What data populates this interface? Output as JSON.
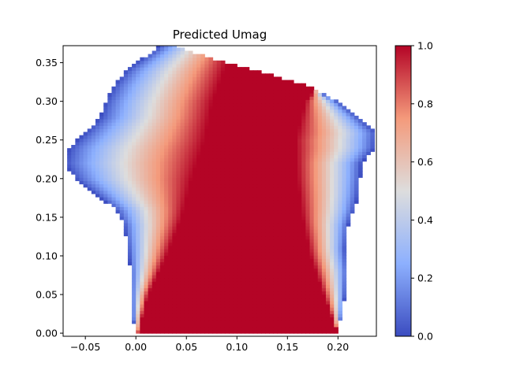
{
  "chart_data": {
    "type": "heatmap",
    "title": "Predicted Umag",
    "xlabel": "",
    "ylabel": "",
    "xlim": [
      -0.072,
      0.238
    ],
    "ylim": [
      -0.004,
      0.372
    ],
    "x_ticks": [
      -0.05,
      0.0,
      0.05,
      0.1,
      0.15,
      0.2
    ],
    "x_tick_labels": [
      "−0.05",
      "0.00",
      "0.05",
      "0.10",
      "0.15",
      "0.20"
    ],
    "y_ticks": [
      0.0,
      0.05,
      0.1,
      0.15,
      0.2,
      0.25,
      0.3,
      0.35
    ],
    "y_tick_labels": [
      "0.00",
      "0.05",
      "0.10",
      "0.15",
      "0.20",
      "0.25",
      "0.30",
      "0.35"
    ],
    "grid": false,
    "colormap": "coolwarm",
    "colormap_stops": [
      "#3b4cc0",
      "#8db0fe",
      "#dddddd",
      "#f49a7b",
      "#b40426"
    ],
    "colorbar": {
      "range": [
        0.0,
        1.0
      ],
      "ticks": [
        0.0,
        0.2,
        0.4,
        0.6,
        0.8,
        1.0
      ],
      "tick_labels": [
        "0.0",
        "0.2",
        "0.4",
        "0.6",
        "0.8",
        "1.0"
      ]
    },
    "domain_boundary": {
      "y": [
        0.0,
        0.02,
        0.05,
        0.08,
        0.11,
        0.14,
        0.16,
        0.18,
        0.2,
        0.22,
        0.24,
        0.26,
        0.28,
        0.3,
        0.32,
        0.34,
        0.35,
        0.37
      ],
      "left_x": [
        0.0,
        -0.003,
        -0.004,
        -0.005,
        -0.008,
        -0.012,
        -0.02,
        -0.04,
        -0.06,
        -0.07,
        -0.066,
        -0.05,
        -0.035,
        -0.03,
        -0.022,
        -0.01,
        0.0,
        0.022
      ],
      "right_x": [
        0.198,
        0.203,
        0.207,
        0.209,
        0.207,
        0.21,
        0.216,
        0.22,
        0.222,
        0.223,
        0.236,
        0.238,
        0.22,
        0.2,
        0.17,
        0.12,
        0.09,
        0.04
      ]
    },
    "red_core": {
      "y": [
        0.0,
        0.05,
        0.1,
        0.15,
        0.2,
        0.25,
        0.3,
        0.35,
        0.37
      ],
      "left_x": [
        0.002,
        0.012,
        0.03,
        0.045,
        0.055,
        0.068,
        0.076,
        0.09,
        0.095
      ],
      "right_x": [
        0.2,
        0.186,
        0.173,
        0.165,
        0.16,
        0.158,
        0.168,
        0.2,
        0.22
      ]
    }
  }
}
